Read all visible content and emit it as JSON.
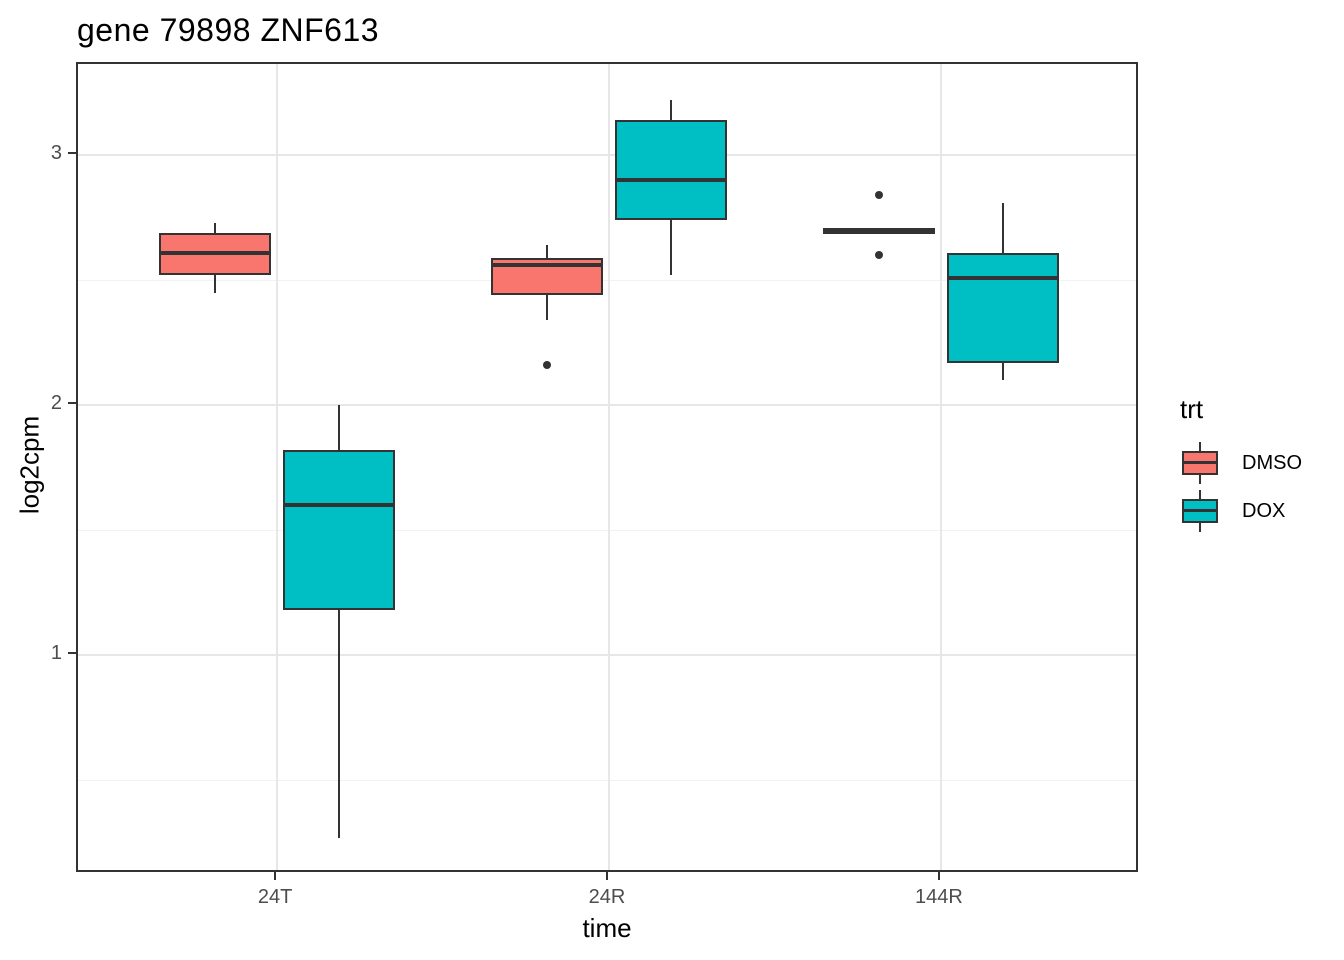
{
  "chart_data": {
    "type": "boxplot",
    "title": "gene 79898 ZNF613",
    "xlabel": "time",
    "ylabel": "log2cpm",
    "categories": [
      "24T",
      "24R",
      "144R"
    ],
    "y_ticks": [
      1,
      2,
      3
    ],
    "y_minor_gridlines": [
      0.5,
      1.5,
      2.5
    ],
    "ylim": [
      0.124,
      3.364
    ],
    "grid": "on",
    "legend": {
      "title": "trt",
      "position": "right",
      "entries": [
        {
          "label": "DMSO",
          "color": "#F8766D"
        },
        {
          "label": "DOX",
          "color": "#00BFC4"
        }
      ]
    },
    "series": [
      {
        "name": "DMSO",
        "color": "#F8766D",
        "boxes": [
          {
            "category": "24T",
            "whisker_low": 2.45,
            "q1": 2.52,
            "median": 2.61,
            "q3": 2.69,
            "whisker_high": 2.73,
            "outliers": []
          },
          {
            "category": "24R",
            "whisker_low": 2.34,
            "q1": 2.44,
            "median": 2.56,
            "q3": 2.59,
            "whisker_high": 2.64,
            "outliers": [
              2.16
            ]
          },
          {
            "category": "144R",
            "whisker_low": 2.7,
            "q1": 2.7,
            "median": 2.7,
            "q3": 2.7,
            "whisker_high": 2.7,
            "outliers": [
              2.84,
              2.6
            ]
          }
        ]
      },
      {
        "name": "DOX",
        "color": "#00BFC4",
        "boxes": [
          {
            "category": "24T",
            "whisker_low": 0.27,
            "q1": 1.18,
            "median": 1.6,
            "q3": 1.82,
            "whisker_high": 2.0,
            "outliers": []
          },
          {
            "category": "24R",
            "whisker_low": 2.52,
            "q1": 2.74,
            "median": 2.9,
            "q3": 3.14,
            "whisker_high": 3.22,
            "outliers": []
          },
          {
            "category": "144R",
            "whisker_low": 2.1,
            "q1": 2.17,
            "median": 2.51,
            "q3": 2.61,
            "whisker_high": 2.81,
            "outliers": []
          }
        ]
      }
    ]
  }
}
